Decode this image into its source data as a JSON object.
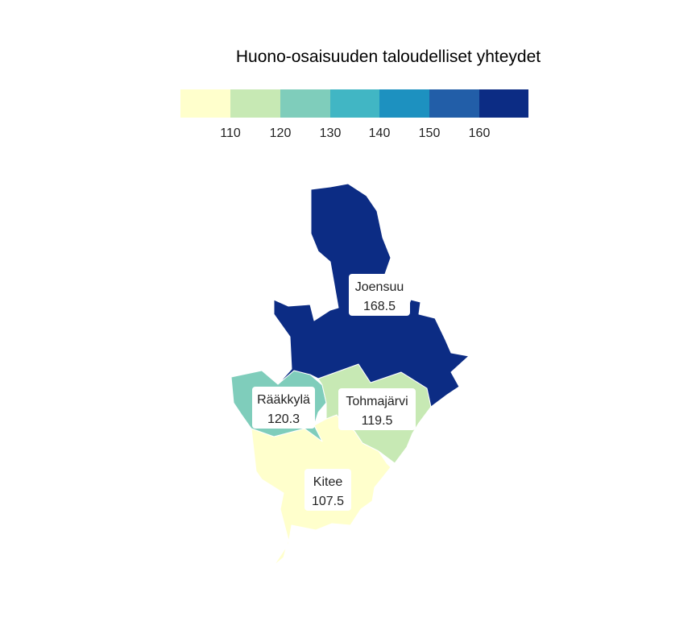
{
  "chart_data": {
    "type": "choropleth",
    "title": "Huono-osaisuuden taloudelliset yhteydet",
    "legend": {
      "position": "top",
      "ticks": [
        "110",
        "120",
        "130",
        "140",
        "150",
        "160"
      ],
      "colors": [
        "#ffffcc",
        "#c7e9b4",
        "#7fcdbb",
        "#41b6c4",
        "#1d91c0",
        "#225ea8",
        "#0c2c84"
      ]
    },
    "regions": [
      {
        "name": "Joensuu",
        "value": 168.5,
        "color": "#0c2c84"
      },
      {
        "name": "Rääkkylä",
        "value": 120.3,
        "color": "#7fcdbb"
      },
      {
        "name": "Tohmajärvi",
        "value": 119.5,
        "color": "#c7e9b4"
      },
      {
        "name": "Kitee",
        "value": 107.5,
        "color": "#ffffcc"
      }
    ]
  }
}
